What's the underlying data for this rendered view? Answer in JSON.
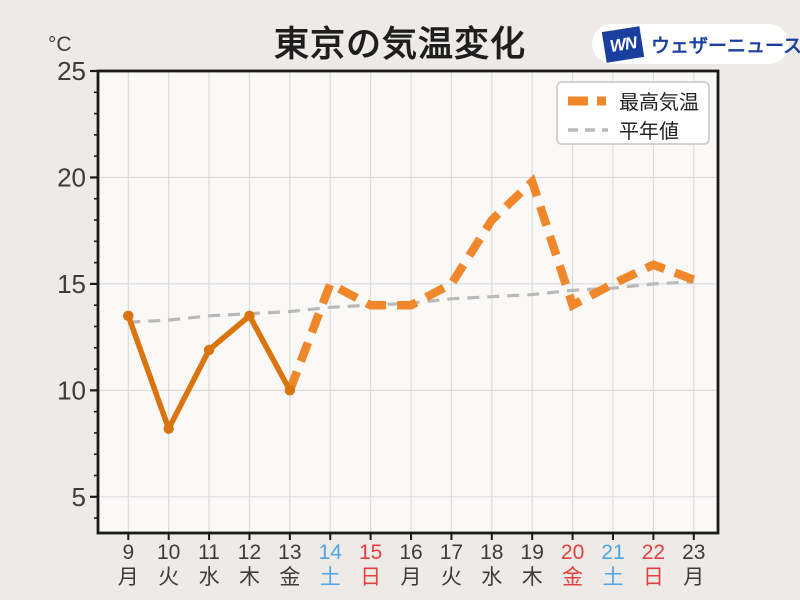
{
  "logo": {
    "mark": "WN",
    "name": "ウェザーニュース",
    "color": "#1B3F9E"
  },
  "chart_data": {
    "type": "line",
    "title": "東京の気温変化",
    "ylabel": "°C",
    "xlabel": "",
    "ylim": [
      3.3,
      25
    ],
    "yticks": [
      5,
      10,
      15,
      20,
      25
    ],
    "minor_tick_step": 1,
    "grid": true,
    "legend_position": "top-right",
    "x": [
      9,
      10,
      11,
      12,
      13,
      14,
      15,
      16,
      17,
      18,
      19,
      20,
      21,
      22,
      23
    ],
    "x_labels": [
      {
        "date": "9",
        "dow": "月",
        "color_key": "default"
      },
      {
        "date": "10",
        "dow": "火",
        "color_key": "default"
      },
      {
        "date": "11",
        "dow": "水",
        "color_key": "default"
      },
      {
        "date": "12",
        "dow": "木",
        "color_key": "default"
      },
      {
        "date": "13",
        "dow": "金",
        "color_key": "default"
      },
      {
        "date": "14",
        "dow": "土",
        "color_key": "saturday"
      },
      {
        "date": "15",
        "dow": "日",
        "color_key": "sunday"
      },
      {
        "date": "16",
        "dow": "月",
        "color_key": "default"
      },
      {
        "date": "17",
        "dow": "火",
        "color_key": "default"
      },
      {
        "date": "18",
        "dow": "水",
        "color_key": "default"
      },
      {
        "date": "19",
        "dow": "木",
        "color_key": "default"
      },
      {
        "date": "20",
        "dow": "金",
        "color_key": "sunday"
      },
      {
        "date": "21",
        "dow": "土",
        "color_key": "saturday"
      },
      {
        "date": "22",
        "dow": "日",
        "color_key": "sunday"
      },
      {
        "date": "23",
        "dow": "月",
        "color_key": "default"
      }
    ],
    "weekday_colors": {
      "default": "#3C3C3C",
      "saturday": "#4FA6E6",
      "sunday": "#E2403C"
    },
    "series": [
      {
        "name": "最高気温",
        "values": [
          13.5,
          8.2,
          11.9,
          13.5,
          10.0,
          15.0,
          14.0,
          14.0,
          15.0,
          18.0,
          19.8,
          14.0,
          15.0,
          15.9,
          15.2
        ],
        "observed_through_index": 4,
        "solid_color": "#D9740E",
        "dashed_color": "#F0882B"
      },
      {
        "name": "平年値",
        "values": [
          13.2,
          13.3,
          13.5,
          13.6,
          13.7,
          13.9,
          14.0,
          14.1,
          14.3,
          14.4,
          14.5,
          14.7,
          14.8,
          15.0,
          15.1
        ],
        "color": "#B9B9B9",
        "style": "dashed"
      }
    ]
  },
  "colors": {
    "background": "#EDEAE7",
    "plot_background": "#FBF9F8",
    "grid": "#DCDCDC",
    "axis": "#1A1A1A",
    "tick_label": "#3C3C3C",
    "legend_border": "#D2D2D2",
    "title": "#1E1E1E"
  }
}
